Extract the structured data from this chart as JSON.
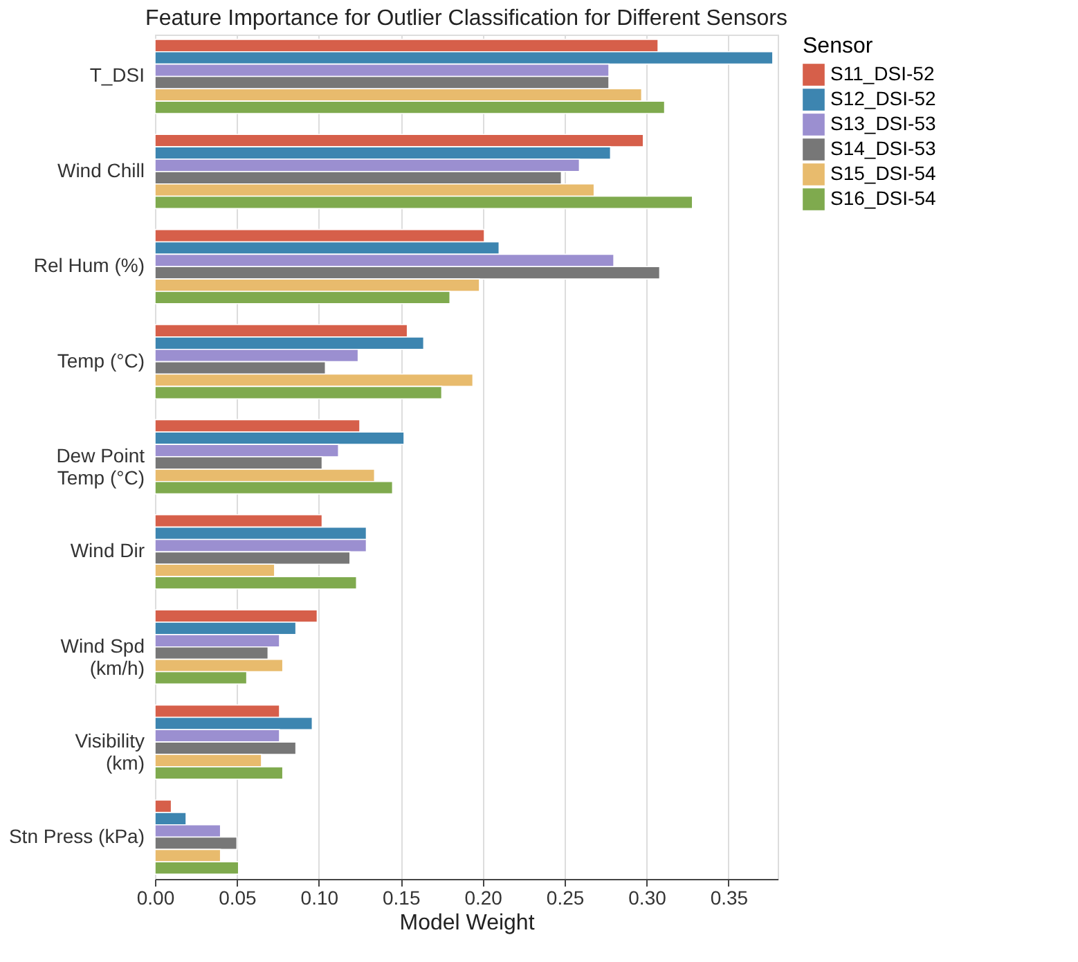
{
  "chart_data": {
    "type": "bar",
    "orientation": "horizontal",
    "title": "Feature Importance for Outlier Classification for Different Sensors",
    "xlabel": "Model Weight",
    "legend_title": "Sensor",
    "legend": "right",
    "grid": "x",
    "categories": [
      "T_DSI",
      "Wind Chill",
      "Rel Hum (%)",
      "Temp (°C)",
      "Dew Point\nTemp (°C)",
      "Wind Dir",
      "Wind Spd\n(km/h)",
      "Visibility\n(km)",
      "Stn Press (kPa)"
    ],
    "xlim": [
      0,
      0.38
    ],
    "xticks": [
      {
        "value": 0,
        "label": "0.00"
      },
      0.05,
      {
        "value": 0.1,
        "label": "0.10"
      },
      0.15,
      {
        "value": 0.2,
        "label": "0.20"
      },
      0.25,
      {
        "value": 0.3,
        "label": "0.30"
      },
      0.35
    ],
    "series": [
      {
        "name": "S11_DSI-52",
        "color": "#d65f4a",
        "values": [
          0.307,
          0.298,
          0.201,
          0.154,
          0.125,
          0.102,
          0.099,
          0.076,
          0.01
        ]
      },
      {
        "name": "S12_DSI-52",
        "color": "#3d85b0",
        "values": [
          0.377,
          0.278,
          0.21,
          0.164,
          0.152,
          0.129,
          0.086,
          0.096,
          0.019
        ]
      },
      {
        "name": "S13_DSI-53",
        "color": "#9b8fd0",
        "values": [
          0.277,
          0.259,
          0.28,
          0.124,
          0.112,
          0.129,
          0.076,
          0.076,
          0.04
        ]
      },
      {
        "name": "S14_DSI-53",
        "color": "#777777",
        "values": [
          0.277,
          0.248,
          0.308,
          0.104,
          0.102,
          0.119,
          0.069,
          0.086,
          0.05
        ]
      },
      {
        "name": "S15_DSI-54",
        "color": "#e8bb6d",
        "values": [
          0.297,
          0.268,
          0.198,
          0.194,
          0.134,
          0.073,
          0.078,
          0.065,
          0.04
        ]
      },
      {
        "name": "S16_DSI-54",
        "color": "#7faa4e",
        "values": [
          0.311,
          0.328,
          0.18,
          0.175,
          0.145,
          0.123,
          0.056,
          0.078,
          0.051
        ]
      }
    ]
  }
}
